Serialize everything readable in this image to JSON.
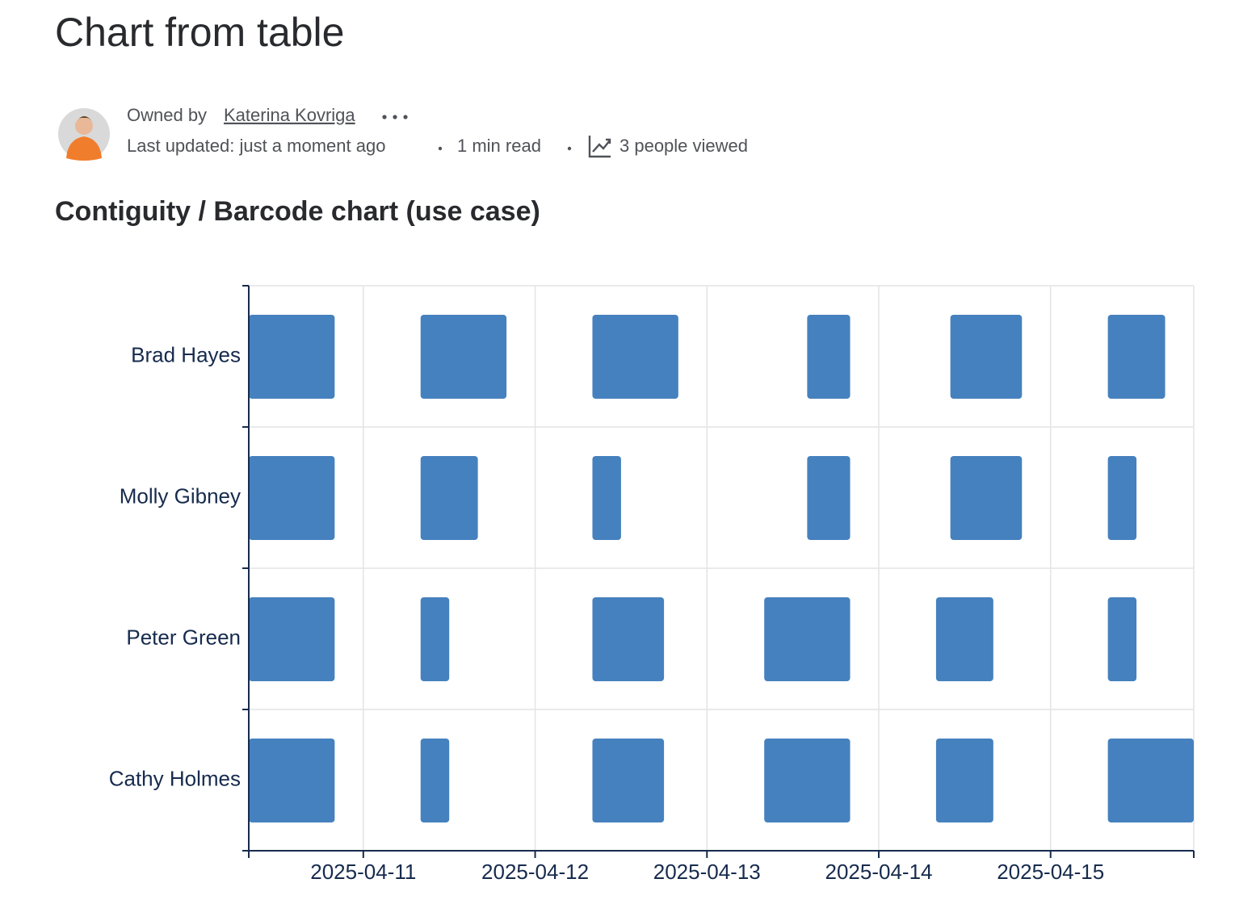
{
  "page": {
    "title": "Chart from table",
    "owner_prefix": "Owned by",
    "owner": "Katerina Kovriga",
    "updated": "Last updated: just a moment ago",
    "read_time": "1 min read",
    "views": "3 people viewed"
  },
  "chart_data": {
    "type": "barcode",
    "title": "Contiguity / Barcode chart (use case)",
    "categories": [
      "Brad Hayes",
      "Molly Gibney",
      "Peter Green",
      "Cathy Holmes"
    ],
    "color": "#4581be",
    "grid": true,
    "xlim": [
      "2025-04-10T08:00",
      "2025-04-15T20:00"
    ],
    "xticks": [
      "2025-04-11",
      "2025-04-12",
      "2025-04-13",
      "2025-04-14",
      "2025-04-15"
    ],
    "series": [
      {
        "name": "Brad Hayes",
        "values": [
          {
            "start": "2025-04-10T08:00",
            "end": "2025-04-10T20:00"
          },
          {
            "start": "2025-04-11T08:00",
            "end": "2025-04-11T20:00"
          },
          {
            "start": "2025-04-12T08:00",
            "end": "2025-04-12T20:00"
          },
          {
            "start": "2025-04-13T14:00",
            "end": "2025-04-13T20:00"
          },
          {
            "start": "2025-04-14T10:00",
            "end": "2025-04-14T20:00"
          },
          {
            "start": "2025-04-15T08:00",
            "end": "2025-04-15T16:00"
          }
        ]
      },
      {
        "name": "Molly Gibney",
        "values": [
          {
            "start": "2025-04-10T08:00",
            "end": "2025-04-10T20:00"
          },
          {
            "start": "2025-04-11T08:00",
            "end": "2025-04-11T16:00"
          },
          {
            "start": "2025-04-12T08:00",
            "end": "2025-04-12T12:00"
          },
          {
            "start": "2025-04-13T14:00",
            "end": "2025-04-13T20:00"
          },
          {
            "start": "2025-04-14T10:00",
            "end": "2025-04-14T20:00"
          },
          {
            "start": "2025-04-15T08:00",
            "end": "2025-04-15T12:00"
          }
        ]
      },
      {
        "name": "Peter Green",
        "values": [
          {
            "start": "2025-04-10T08:00",
            "end": "2025-04-10T20:00"
          },
          {
            "start": "2025-04-11T08:00",
            "end": "2025-04-11T12:00"
          },
          {
            "start": "2025-04-12T08:00",
            "end": "2025-04-12T18:00"
          },
          {
            "start": "2025-04-13T08:00",
            "end": "2025-04-13T20:00"
          },
          {
            "start": "2025-04-14T08:00",
            "end": "2025-04-14T16:00"
          },
          {
            "start": "2025-04-15T08:00",
            "end": "2025-04-15T12:00"
          }
        ]
      },
      {
        "name": "Cathy Holmes",
        "values": [
          {
            "start": "2025-04-10T08:00",
            "end": "2025-04-10T20:00"
          },
          {
            "start": "2025-04-11T08:00",
            "end": "2025-04-11T12:00"
          },
          {
            "start": "2025-04-12T08:00",
            "end": "2025-04-12T18:00"
          },
          {
            "start": "2025-04-13T08:00",
            "end": "2025-04-13T20:00"
          },
          {
            "start": "2025-04-14T08:00",
            "end": "2025-04-14T16:00"
          },
          {
            "start": "2025-04-15T08:00",
            "end": "2025-04-15T20:00"
          }
        ]
      }
    ]
  }
}
